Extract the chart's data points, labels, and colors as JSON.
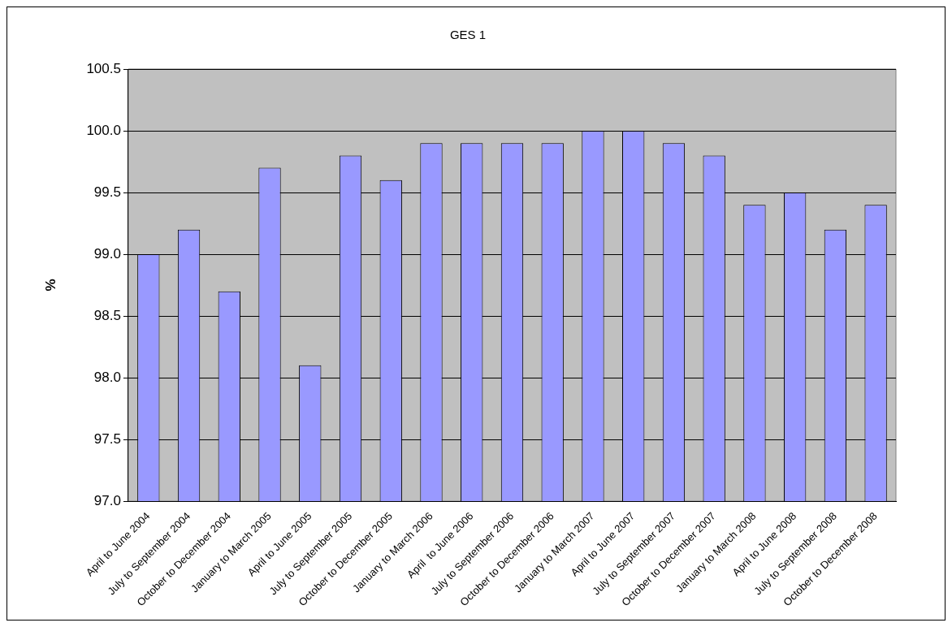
{
  "chart_data": {
    "type": "bar",
    "title": "GES 1",
    "ylabel": "%",
    "categories": [
      "April to June 2004",
      "July to September 2004",
      "October to December 2004",
      "January to March 2005",
      "April to June 2005",
      "July to September 2005",
      "October to December 2005",
      "January to March 2006",
      "April  to June 2006",
      "July to September 2006",
      "October to December 2006",
      "January to March 2007",
      "April to June 2007",
      "July to September 2007",
      "October to December 2007",
      "January to March 2008",
      "April to June 2008",
      "July to September 2008",
      "October to December 2008"
    ],
    "values": [
      99.0,
      99.2,
      98.7,
      99.7,
      98.1,
      99.8,
      99.6,
      99.9,
      99.9,
      99.9,
      99.9,
      100.0,
      100.0,
      99.9,
      99.8,
      99.4,
      99.5,
      99.2,
      99.4
    ],
    "color": "#9999ff",
    "ylim": [
      97.0,
      100.5
    ],
    "yticks": [
      {
        "value": 97,
        "label": "97.0"
      },
      {
        "value": 97.5,
        "label": "97.5"
      },
      {
        "value": 98,
        "label": "98.0"
      },
      {
        "value": 98.5,
        "label": "98.5"
      },
      {
        "value": 99,
        "label": "99.0"
      },
      {
        "value": 99.5,
        "label": "99.5"
      },
      {
        "value": 100,
        "label": "100.0"
      },
      {
        "value": 100.5,
        "label": "100.5"
      }
    ],
    "grid": "y",
    "legend": false
  }
}
